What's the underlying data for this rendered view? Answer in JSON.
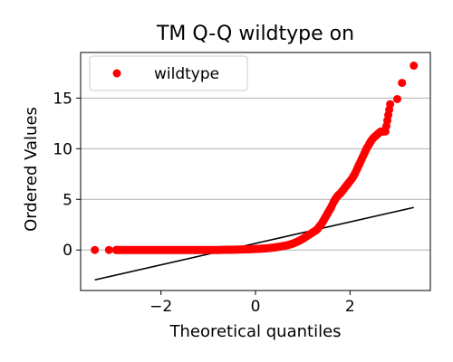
{
  "chart_data": {
    "type": "scatter",
    "title": "TM Q-Q wildtype on",
    "xlabel": "Theoretical quantiles",
    "ylabel": "Ordered Values",
    "xlim": [
      -3.7,
      3.7
    ],
    "ylim": [
      -4.0,
      19.5
    ],
    "xticks": [
      -2,
      0,
      2
    ],
    "xtick_labels": [
      "−2",
      "0",
      "2"
    ],
    "yticks": [
      0,
      5,
      10,
      15
    ],
    "ytick_labels": [
      "0",
      "5",
      "10",
      "15"
    ],
    "grid": "y",
    "legend": {
      "placement": "top-left",
      "entries": [
        "wildtype"
      ]
    },
    "colors": {
      "points": "#ff0000",
      "line": "#000000",
      "grid": "#b0b0b0"
    },
    "series": [
      {
        "name": "wildtype",
        "kind": "points",
        "x": [
          -3.4,
          -3.1,
          -2.95,
          -2.8,
          -2.6,
          -2.4,
          -2.2,
          -2.0,
          -1.8,
          -1.6,
          -1.4,
          -1.2,
          -1.0,
          -0.8,
          -0.6,
          -0.4,
          -0.2,
          0.0,
          0.2,
          0.4,
          0.6,
          0.7,
          0.8,
          0.9,
          1.0,
          1.1,
          1.2,
          1.3,
          1.35,
          1.4,
          1.45,
          1.5,
          1.55,
          1.6,
          1.65,
          1.7,
          1.75,
          1.8,
          1.85,
          1.9,
          1.95,
          2.0,
          2.05,
          2.1,
          2.15,
          2.2,
          2.25,
          2.3,
          2.35,
          2.4,
          2.45,
          2.5,
          2.55,
          2.6,
          2.65,
          2.7,
          2.75,
          2.85,
          3.0,
          3.1,
          3.35
        ],
        "y": [
          0.0,
          0.0,
          0.0,
          0.0,
          0.0,
          0.0,
          0.0,
          0.0,
          0.0,
          0.0,
          0.0,
          0.0,
          0.0,
          0.0,
          0.02,
          0.04,
          0.06,
          0.1,
          0.15,
          0.25,
          0.4,
          0.5,
          0.65,
          0.85,
          1.1,
          1.4,
          1.7,
          2.0,
          2.3,
          2.6,
          3.0,
          3.4,
          3.8,
          4.2,
          4.7,
          5.1,
          5.4,
          5.6,
          5.9,
          6.2,
          6.5,
          6.8,
          7.1,
          7.5,
          8.0,
          8.5,
          9.0,
          9.5,
          10.0,
          10.4,
          10.8,
          11.1,
          11.3,
          11.5,
          11.7,
          11.7,
          11.7,
          14.4,
          14.9,
          16.5,
          18.2
        ]
      },
      {
        "name": "",
        "kind": "line",
        "x": [
          -3.4,
          3.35
        ],
        "y": [
          -2.95,
          4.2
        ]
      }
    ]
  }
}
